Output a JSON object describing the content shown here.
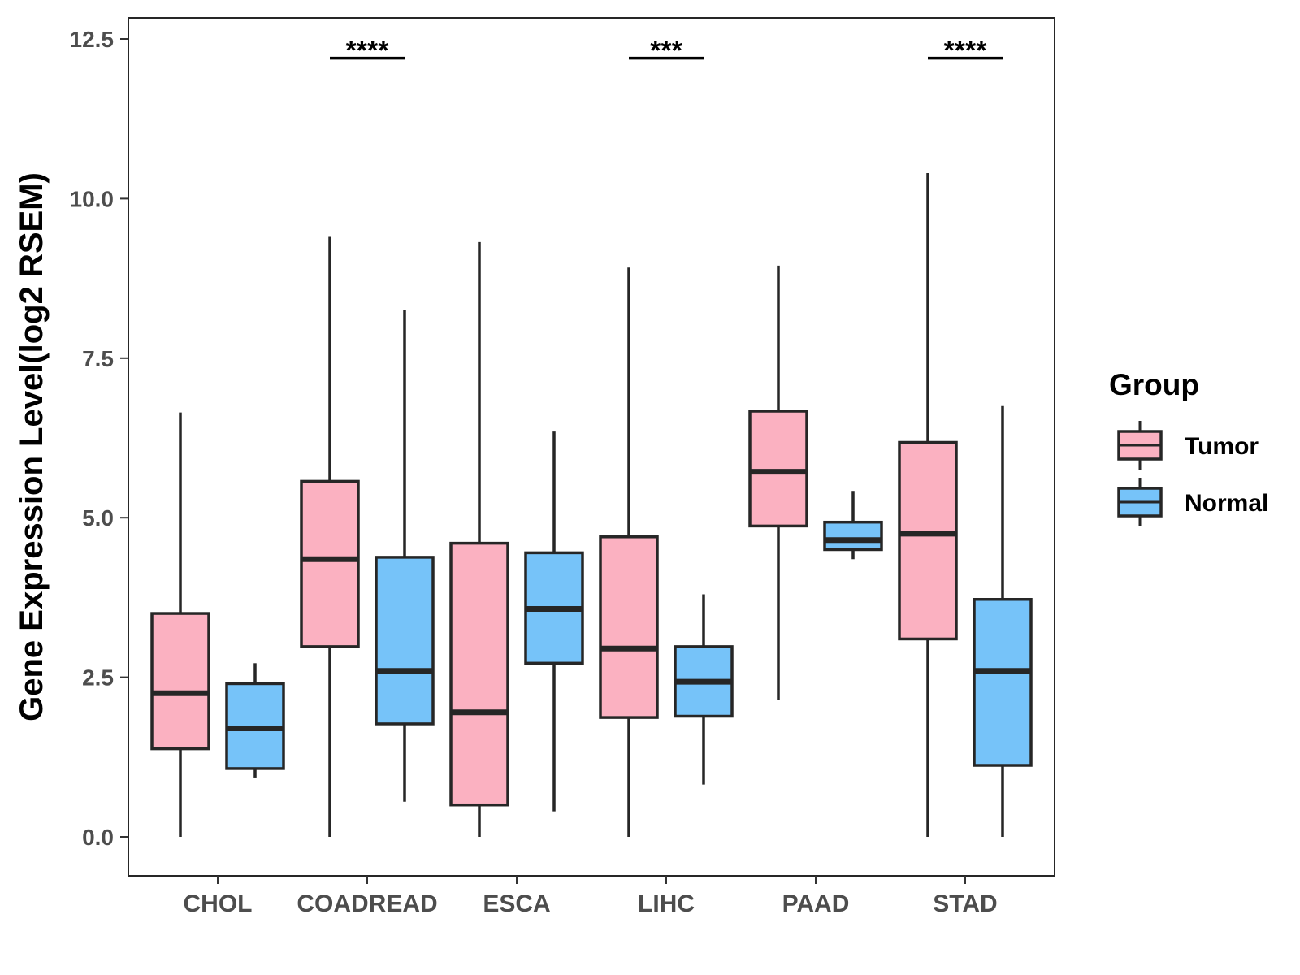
{
  "chart_data": {
    "type": "box",
    "ylabel": "Gene Expression Level(log2 RSEM)",
    "xlabel": "",
    "ylim": [
      -0.6,
      12.9
    ],
    "yticks": [
      0.0,
      2.5,
      5.0,
      7.5,
      10.0,
      12.5
    ],
    "ytick_labels": [
      "0.0",
      "2.5",
      "5.0",
      "7.5",
      "10.0",
      "12.5"
    ],
    "categories": [
      "CHOL",
      "COADREAD",
      "ESCA",
      "LIHC",
      "PAAD",
      "STAD"
    ],
    "legend": {
      "title": "Group",
      "position": "right",
      "entries": [
        "Tumor",
        "Normal"
      ]
    },
    "colors": {
      "Tumor": "#FBB1C1",
      "Normal": "#76C3F9",
      "outline": "#262626"
    },
    "series": [
      {
        "name": "Tumor",
        "boxes": [
          {
            "category": "CHOL",
            "whisker_low": 0.0,
            "q1": 1.38,
            "median": 2.25,
            "q3": 3.5,
            "whisker_high": 6.65
          },
          {
            "category": "COADREAD",
            "whisker_low": 0.0,
            "q1": 2.98,
            "median": 4.35,
            "q3": 5.57,
            "whisker_high": 9.4
          },
          {
            "category": "ESCA",
            "whisker_low": 0.0,
            "q1": 0.5,
            "median": 1.95,
            "q3": 4.6,
            "whisker_high": 9.32
          },
          {
            "category": "LIHC",
            "whisker_low": 0.0,
            "q1": 1.87,
            "median": 2.95,
            "q3": 4.7,
            "whisker_high": 8.92
          },
          {
            "category": "PAAD",
            "whisker_low": 2.15,
            "q1": 4.87,
            "median": 5.72,
            "q3": 6.67,
            "whisker_high": 8.95
          },
          {
            "category": "STAD",
            "whisker_low": 0.0,
            "q1": 3.1,
            "median": 4.75,
            "q3": 6.18,
            "whisker_high": 10.4
          }
        ]
      },
      {
        "name": "Normal",
        "boxes": [
          {
            "category": "CHOL",
            "whisker_low": 0.93,
            "q1": 1.07,
            "median": 1.7,
            "q3": 2.4,
            "whisker_high": 2.72
          },
          {
            "category": "COADREAD",
            "whisker_low": 0.55,
            "q1": 1.77,
            "median": 2.6,
            "q3": 4.38,
            "whisker_high": 8.25
          },
          {
            "category": "ESCA",
            "whisker_low": 0.4,
            "q1": 2.72,
            "median": 3.57,
            "q3": 4.45,
            "whisker_high": 6.35
          },
          {
            "category": "LIHC",
            "whisker_low": 0.82,
            "q1": 1.89,
            "median": 2.43,
            "q3": 2.98,
            "whisker_high": 3.8
          },
          {
            "category": "PAAD",
            "whisker_low": 4.35,
            "q1": 4.5,
            "median": 4.65,
            "q3": 4.93,
            "whisker_high": 5.42
          },
          {
            "category": "STAD",
            "whisker_low": 0.0,
            "q1": 1.12,
            "median": 2.6,
            "q3": 3.72,
            "whisker_high": 6.75
          }
        ]
      }
    ],
    "annotations": [
      {
        "category": "COADREAD",
        "text": "****",
        "y": 12.2
      },
      {
        "category": "LIHC",
        "text": "***",
        "y": 12.2
      },
      {
        "category": "STAD",
        "text": "****",
        "y": 12.2
      }
    ]
  }
}
